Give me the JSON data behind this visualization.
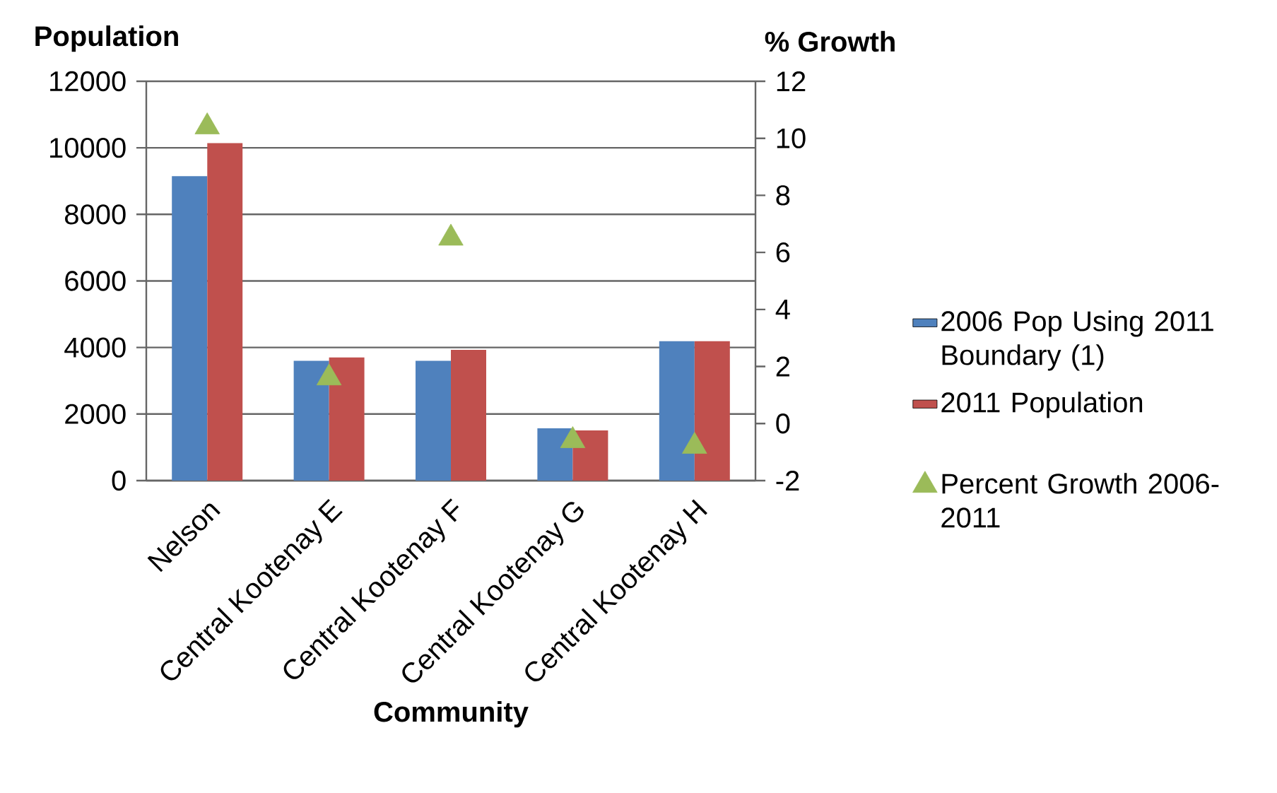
{
  "chart_data": {
    "type": "bar",
    "xlabel": "Community",
    "ylabel": "Population",
    "y2label": "% Growth",
    "categories": [
      "Nelson",
      "Central Kootenay E",
      "Central Kootenay F",
      "Central Kootenay G",
      "Central Kootenay H"
    ],
    "series": [
      {
        "name": "2006 Pop Using 2011 Boundary (1)",
        "color": "#4f81bd",
        "values": [
          9150,
          3600,
          3600,
          1570,
          4190
        ]
      },
      {
        "name": "2011 Population",
        "color": "#c0504d",
        "values": [
          10140,
          3700,
          3930,
          1510,
          4190
        ]
      },
      {
        "name": "Percent Growth 2006-2011",
        "type": "scatter",
        "axis": "y2",
        "marker": "triangle",
        "color": "#9bbb59",
        "values": [
          10.4,
          1.6,
          6.5,
          -0.6,
          -0.8
        ]
      }
    ],
    "ylim": [
      0,
      12000
    ],
    "yticks": [
      0,
      2000,
      4000,
      6000,
      8000,
      10000,
      12000
    ],
    "y2lim": [
      -2,
      12
    ],
    "y2ticks": [
      -2,
      0,
      2,
      4,
      6,
      8,
      10,
      12
    ],
    "grid": "y",
    "legend": "right"
  }
}
